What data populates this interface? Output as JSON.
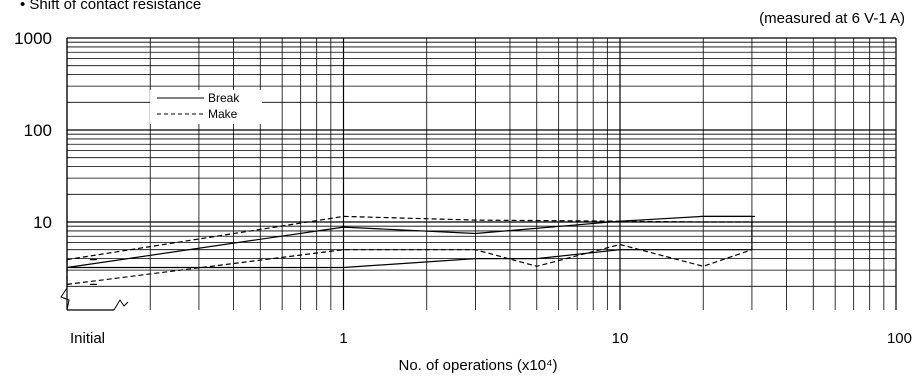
{
  "title": "• Shift of contact resistance",
  "condition": "(measured at 6 V-1 A)",
  "chart_data": {
    "type": "line",
    "xlabel": "No. of operations (x10⁴)",
    "ylabel": "",
    "x_scale": "log",
    "y_scale": "log",
    "xlim": [
      0.1,
      100
    ],
    "ylim": [
      1,
      1000
    ],
    "x_tick_labels": [
      "Initial",
      "1",
      "10",
      "100"
    ],
    "y_tick_labels": [
      "10",
      "100",
      "1000"
    ],
    "legend_position": "top-left",
    "legend": [
      "Break",
      "Make"
    ],
    "series": [
      {
        "name": "Break",
        "style": "solid",
        "upper": [
          [
            0.1,
            3.2
          ],
          [
            1,
            8.8
          ],
          [
            3,
            7.5
          ],
          [
            10,
            10.2
          ],
          [
            20,
            11.5
          ],
          [
            30,
            11.5
          ]
        ],
        "lower": [
          [
            0.1,
            3.2
          ],
          [
            1,
            3.2
          ],
          [
            3,
            4.0
          ],
          [
            5,
            4.0
          ],
          [
            10,
            5.0
          ],
          [
            20,
            5.0
          ],
          [
            30,
            5.0
          ]
        ]
      },
      {
        "name": "Make",
        "style": "dashed",
        "upper": [
          [
            0.1,
            3.9
          ],
          [
            1,
            11.5
          ],
          [
            3,
            10.5
          ],
          [
            10,
            10.2
          ],
          [
            20,
            10.0
          ],
          [
            30,
            10.0
          ]
        ],
        "lower": [
          [
            0.1,
            2.1
          ],
          [
            1,
            5.0
          ],
          [
            3,
            5.0
          ],
          [
            5,
            3.3
          ],
          [
            10,
            5.7
          ],
          [
            20,
            3.3
          ],
          [
            30,
            5.0
          ]
        ]
      }
    ]
  }
}
